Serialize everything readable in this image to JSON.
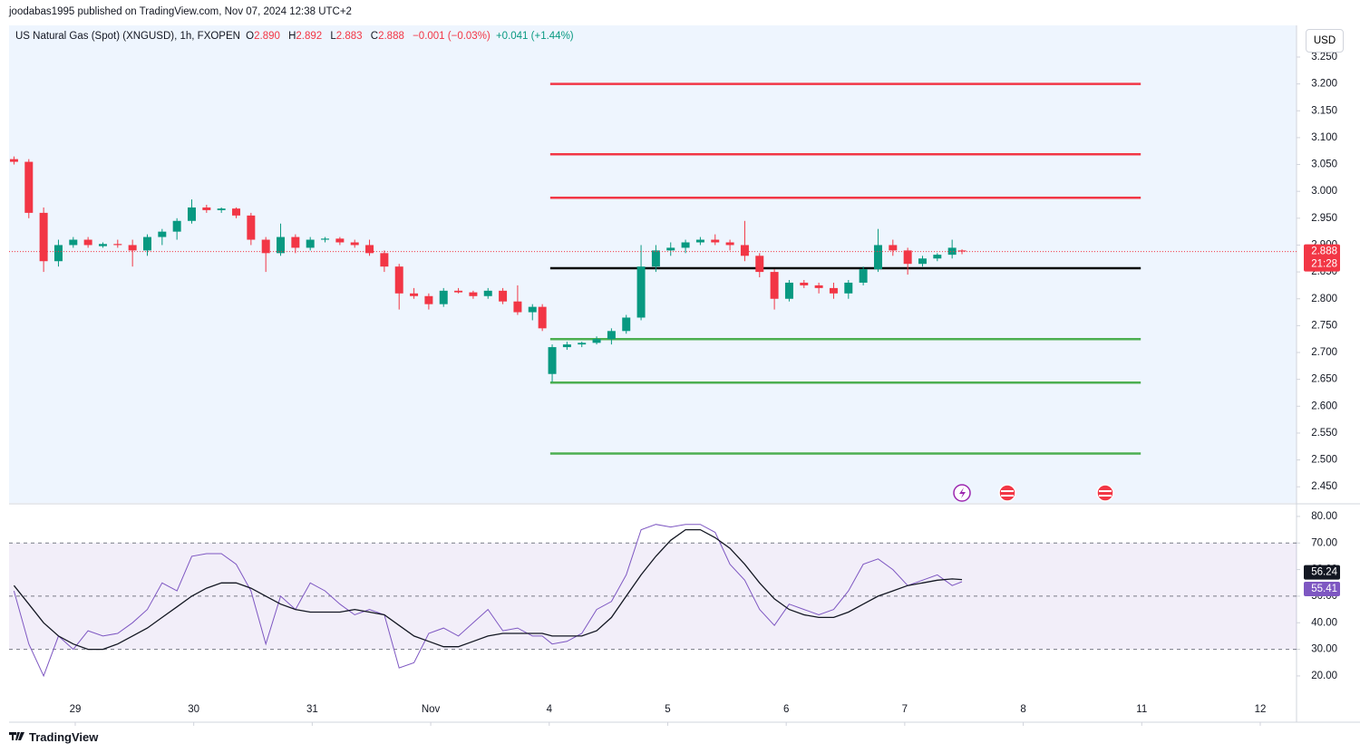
{
  "header": {
    "published": "joodabas1995 published on TradingView.com, Nov 07, 2024 12:38 UTC+2",
    "symbol": "US Natural Gas (Spot) (XNGUSD), 1h, FXOPEN",
    "o_label": "O",
    "o": "2.890",
    "h_label": "H",
    "h": "2.892",
    "l_label": "L",
    "l": "2.883",
    "c_label": "C",
    "c": "2.888",
    "change": "−0.001 (−0.03%)",
    "change2": "+0.041 (+1.44%)",
    "currency": "USD",
    "countdown": "21:28",
    "footer": "TradingView"
  },
  "chart_data": [
    {
      "type": "candlestick",
      "up_color": "#089981",
      "down_color": "#f23645",
      "x": [
        1,
        4,
        7,
        10,
        13,
        16,
        19,
        22,
        25,
        28,
        31,
        34,
        37,
        40,
        43,
        46,
        49,
        52,
        55,
        58,
        61,
        64,
        67,
        70,
        73,
        76,
        79,
        82,
        85,
        88,
        91,
        94,
        97,
        100,
        103,
        106,
        108,
        110,
        113,
        116,
        119,
        122,
        125,
        128,
        131,
        134,
        137,
        140,
        143,
        146,
        149,
        152,
        155,
        158,
        161,
        164,
        167,
        170,
        173,
        176,
        179,
        182,
        185,
        188,
        191,
        193
      ],
      "open": [
        3.06,
        3.055,
        2.96,
        2.87,
        2.9,
        2.91,
        2.898,
        2.902,
        2.9,
        2.89,
        2.915,
        2.925,
        2.945,
        2.97,
        2.965,
        2.968,
        2.955,
        2.91,
        2.885,
        2.915,
        2.895,
        2.91,
        2.912,
        2.905,
        2.9,
        2.885,
        2.86,
        2.81,
        2.805,
        2.79,
        2.815,
        2.812,
        2.805,
        2.815,
        2.795,
        2.775,
        2.785,
        2.66,
        2.71,
        2.715,
        2.718,
        2.725,
        2.74,
        2.765,
        2.86,
        2.89,
        2.895,
        2.905,
        2.91,
        2.905,
        2.9,
        2.88,
        2.85,
        2.8,
        2.83,
        2.825,
        2.82,
        2.81,
        2.83,
        2.855,
        2.9,
        2.89,
        2.865,
        2.875,
        2.882,
        2.89
      ],
      "high": [
        3.065,
        3.06,
        2.97,
        2.91,
        2.915,
        2.915,
        2.905,
        2.91,
        2.91,
        2.92,
        2.93,
        2.95,
        2.985,
        2.975,
        2.97,
        2.97,
        2.96,
        2.915,
        2.94,
        2.92,
        2.915,
        2.915,
        2.915,
        2.91,
        2.91,
        2.89,
        2.865,
        2.82,
        2.81,
        2.82,
        2.82,
        2.815,
        2.82,
        2.82,
        2.825,
        2.79,
        2.79,
        2.715,
        2.72,
        2.72,
        2.73,
        2.745,
        2.77,
        2.9,
        2.9,
        2.905,
        2.91,
        2.915,
        2.92,
        2.91,
        2.945,
        2.885,
        2.855,
        2.835,
        2.835,
        2.83,
        2.83,
        2.835,
        2.86,
        2.93,
        2.91,
        2.895,
        2.88,
        2.885,
        2.91,
        2.892
      ],
      "low": [
        3.05,
        2.95,
        2.85,
        2.86,
        2.895,
        2.895,
        2.895,
        2.895,
        2.86,
        2.88,
        2.9,
        2.91,
        2.94,
        2.96,
        2.96,
        2.95,
        2.9,
        2.85,
        2.88,
        2.885,
        2.89,
        2.905,
        2.9,
        2.895,
        2.88,
        2.85,
        2.78,
        2.8,
        2.78,
        2.785,
        2.81,
        2.8,
        2.8,
        2.79,
        2.77,
        2.76,
        2.74,
        2.645,
        2.705,
        2.71,
        2.715,
        2.715,
        2.735,
        2.76,
        2.85,
        2.88,
        2.885,
        2.9,
        2.9,
        2.89,
        2.87,
        2.84,
        2.78,
        2.795,
        2.82,
        2.81,
        2.8,
        2.8,
        2.825,
        2.85,
        2.88,
        2.845,
        2.86,
        2.87,
        2.875,
        2.883
      ],
      "close": [
        3.055,
        2.96,
        2.87,
        2.9,
        2.91,
        2.9,
        2.902,
        2.9,
        2.89,
        2.915,
        2.925,
        2.945,
        2.97,
        2.965,
        2.968,
        2.955,
        2.91,
        2.885,
        2.915,
        2.895,
        2.91,
        2.912,
        2.905,
        2.9,
        2.885,
        2.86,
        2.81,
        2.805,
        2.79,
        2.815,
        2.812,
        2.805,
        2.815,
        2.795,
        2.775,
        2.785,
        2.745,
        2.71,
        2.715,
        2.718,
        2.725,
        2.74,
        2.765,
        2.86,
        2.89,
        2.895,
        2.905,
        2.91,
        2.905,
        2.9,
        2.88,
        2.85,
        2.8,
        2.83,
        2.825,
        2.82,
        2.81,
        2.83,
        2.855,
        2.9,
        2.89,
        2.865,
        2.875,
        2.882,
        2.895,
        2.888
      ],
      "levels": [
        {
          "value": 3.2,
          "color": "#f23645"
        },
        {
          "value": 3.069,
          "color": "#f23645"
        },
        {
          "value": 2.988,
          "color": "#f23645"
        },
        {
          "value": 2.857,
          "color": "#000000"
        },
        {
          "value": 2.725,
          "color": "#4caf50"
        },
        {
          "value": 2.644,
          "color": "#4caf50"
        },
        {
          "value": 2.512,
          "color": "#4caf50"
        }
      ],
      "level_x": [
        109.6,
        229.2
      ],
      "last_price": 2.888,
      "xlim": [
        0,
        260.75
      ],
      "xticks": [
        {
          "value": 13.4,
          "label": "29"
        },
        {
          "value": 37.4,
          "label": "30"
        },
        {
          "value": 61.4,
          "label": "31"
        },
        {
          "value": 85.4,
          "label": "Nov"
        },
        {
          "value": 109.4,
          "label": "4"
        },
        {
          "value": 133.4,
          "label": "5"
        },
        {
          "value": 157.4,
          "label": "6"
        },
        {
          "value": 181.4,
          "label": "7"
        },
        {
          "value": 205.4,
          "label": "8"
        },
        {
          "value": 229.4,
          "label": "11"
        },
        {
          "value": 253.4,
          "label": "12"
        }
      ],
      "ylim": [
        2.42,
        3.309
      ],
      "yticks": [
        {
          "value": 3.25,
          "label": "3.250"
        },
        {
          "value": 3.2,
          "label": "3.200"
        },
        {
          "value": 3.15,
          "label": "3.150"
        },
        {
          "value": 3.1,
          "label": "3.100"
        },
        {
          "value": 3.05,
          "label": "3.050"
        },
        {
          "value": 3.0,
          "label": "3.000"
        },
        {
          "value": 2.95,
          "label": "2.950"
        },
        {
          "value": 2.9,
          "label": "2.900"
        },
        {
          "value": 2.85,
          "label": "2.850"
        },
        {
          "value": 2.8,
          "label": "2.800"
        },
        {
          "value": 2.75,
          "label": "2.750"
        },
        {
          "value": 2.7,
          "label": "2.700"
        },
        {
          "value": 2.65,
          "label": "2.650"
        },
        {
          "value": 2.6,
          "label": "2.600"
        },
        {
          "value": 2.55,
          "label": "2.550"
        },
        {
          "value": 2.5,
          "label": "2.500"
        },
        {
          "value": 2.45,
          "label": "2.450"
        }
      ]
    },
    {
      "type": "line",
      "x": [
        1,
        4,
        7,
        10,
        13,
        16,
        19,
        22,
        25,
        28,
        31,
        34,
        37,
        40,
        43,
        46,
        49,
        52,
        55,
        58,
        61,
        64,
        67,
        70,
        73,
        76,
        79,
        82,
        85,
        88,
        91,
        94,
        97,
        100,
        103,
        106,
        108,
        110,
        113,
        116,
        119,
        122,
        125,
        128,
        131,
        134,
        137,
        140,
        143,
        146,
        149,
        152,
        155,
        158,
        161,
        164,
        167,
        170,
        173,
        176,
        179,
        182,
        185,
        188,
        191,
        193
      ],
      "series": [
        {
          "color": "#7e57c2",
          "values": [
            52,
            32,
            20,
            35,
            30,
            37,
            35,
            36,
            40,
            45,
            55,
            52,
            65,
            66,
            66,
            62,
            52,
            32,
            50,
            45,
            55,
            52,
            47,
            43,
            45,
            43,
            23,
            25,
            36,
            38,
            35,
            40,
            45,
            37,
            38,
            35,
            35,
            32,
            33,
            36,
            45,
            48,
            58,
            75,
            77,
            76,
            77,
            77,
            74,
            62,
            56,
            45,
            39,
            47,
            45,
            43,
            45,
            52,
            62,
            64,
            60,
            54,
            56,
            58,
            54,
            55.41
          ]
        },
        {
          "color": "#131722",
          "values": [
            54,
            47,
            40,
            35,
            32,
            30,
            30,
            32,
            35,
            38,
            42,
            46,
            50,
            53,
            55,
            55,
            53,
            50,
            47,
            45,
            44,
            44,
            44,
            45,
            44,
            43,
            39,
            35,
            33,
            31,
            31,
            33,
            35,
            36,
            36,
            36,
            36,
            35,
            35,
            35,
            37,
            42,
            50,
            58,
            65,
            71,
            75,
            75,
            72,
            68,
            62,
            55,
            49,
            45,
            43,
            42,
            42,
            44,
            47,
            50,
            52,
            54,
            55,
            56,
            56.5,
            56.24
          ]
        }
      ],
      "last_labels": [
        {
          "value": 56.24,
          "label": "56.24",
          "color": "#131722"
        },
        {
          "value": 55.41,
          "label": "55.41",
          "color": "#7e57c2"
        }
      ],
      "bands": [
        70,
        50,
        30
      ],
      "ylim": [
        13.5,
        84.4
      ],
      "yticks": [
        {
          "value": 80,
          "label": "80.00"
        },
        {
          "value": 70,
          "label": "70.00"
        },
        {
          "value": 60,
          "label": "60.00"
        },
        {
          "value": 50,
          "label": "50.00"
        },
        {
          "value": 40,
          "label": "40.00"
        },
        {
          "value": 30,
          "label": "30.00"
        },
        {
          "value": 20,
          "label": "20.00"
        }
      ]
    }
  ]
}
